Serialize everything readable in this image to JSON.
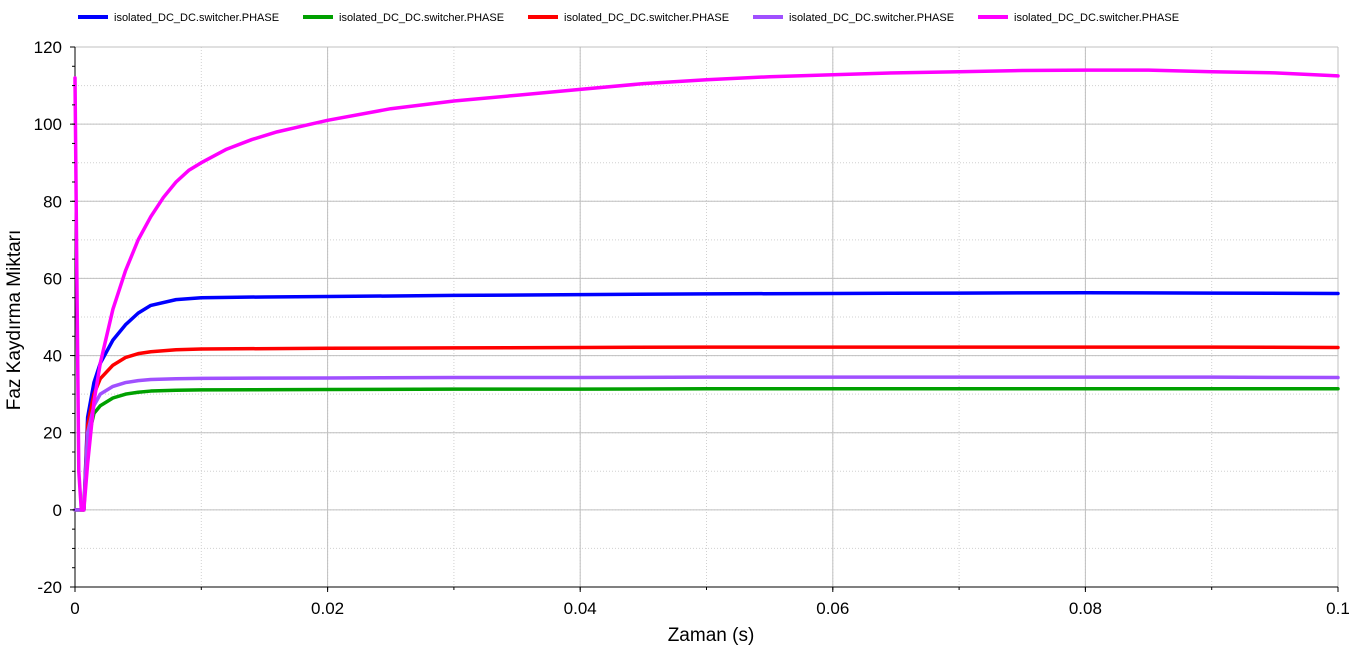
{
  "chart_data": {
    "type": "line",
    "title": "",
    "xlabel": "Zaman (s)",
    "ylabel": "Faz Kaydırma Miktarı",
    "xlim": [
      0,
      0.1
    ],
    "ylim": [
      -20,
      120
    ],
    "x_ticks": [
      0,
      0.02,
      0.04,
      0.06,
      0.08,
      0.1
    ],
    "x_tick_labels": [
      "0",
      "0.02",
      "0.04",
      "0.06",
      "0.08",
      "0.1"
    ],
    "y_ticks": [
      -20,
      0,
      20,
      40,
      60,
      80,
      100,
      120
    ],
    "y_tick_labels": [
      "-20",
      "0",
      "20",
      "40",
      "60",
      "80",
      "100",
      "120"
    ],
    "grid": true,
    "legend_position": "top",
    "series": [
      {
        "name": "isolated_DC_DC.switcher.PHASE",
        "color": "#0000ff",
        "x": [
          0,
          0.0004,
          0.0007,
          0.001,
          0.0015,
          0.002,
          0.003,
          0.004,
          0.005,
          0.006,
          0.008,
          0.01,
          0.015,
          0.02,
          0.03,
          0.04,
          0.05,
          0.06,
          0.07,
          0.08,
          0.09,
          0.1
        ],
        "y": [
          0,
          0,
          0,
          24,
          33,
          38,
          44,
          48,
          51,
          53,
          54.5,
          55,
          55.2,
          55.3,
          55.6,
          55.8,
          56.0,
          56.1,
          56.2,
          56.3,
          56.2,
          56.1
        ]
      },
      {
        "name": "isolated_DC_DC.switcher.PHASE",
        "color": "#00a000",
        "x": [
          0,
          0.0004,
          0.0007,
          0.001,
          0.0015,
          0.002,
          0.003,
          0.004,
          0.005,
          0.006,
          0.008,
          0.01,
          0.02,
          0.03,
          0.04,
          0.05,
          0.06,
          0.07,
          0.08,
          0.09,
          0.1
        ],
        "y": [
          0,
          0,
          0,
          18,
          25,
          27,
          29,
          30,
          30.5,
          30.8,
          31,
          31.1,
          31.2,
          31.3,
          31.3,
          31.4,
          31.4,
          31.4,
          31.4,
          31.4,
          31.4
        ]
      },
      {
        "name": "isolated_DC_DC.switcher.PHASE",
        "color": "#ff0000",
        "x": [
          0,
          0.0004,
          0.0007,
          0.001,
          0.0015,
          0.002,
          0.003,
          0.004,
          0.005,
          0.006,
          0.008,
          0.01,
          0.02,
          0.03,
          0.04,
          0.05,
          0.06,
          0.07,
          0.08,
          0.09,
          0.1
        ],
        "y": [
          0,
          0,
          0,
          22,
          30,
          34,
          37.5,
          39.5,
          40.5,
          41,
          41.5,
          41.7,
          41.9,
          42.0,
          42.1,
          42.2,
          42.2,
          42.2,
          42.2,
          42.2,
          42.1
        ]
      },
      {
        "name": "isolated_DC_DC.switcher.PHASE",
        "color": "#a050ff",
        "x": [
          0,
          0.0004,
          0.0007,
          0.001,
          0.0015,
          0.002,
          0.003,
          0.004,
          0.005,
          0.006,
          0.008,
          0.01,
          0.02,
          0.03,
          0.04,
          0.05,
          0.06,
          0.07,
          0.08,
          0.09,
          0.1
        ],
        "y": [
          0,
          0,
          0,
          20,
          27,
          30,
          32,
          33,
          33.5,
          33.8,
          34,
          34.1,
          34.2,
          34.3,
          34.3,
          34.4,
          34.4,
          34.4,
          34.4,
          34.4,
          34.3
        ]
      },
      {
        "name": "isolated_DC_DC.switcher.PHASE",
        "color": "#ff00ff",
        "x": [
          0,
          0.00015,
          0.0003,
          0.0005,
          0.0007,
          0.001,
          0.0015,
          0.002,
          0.003,
          0.004,
          0.005,
          0.006,
          0.007,
          0.008,
          0.009,
          0.01,
          0.012,
          0.014,
          0.016,
          0.018,
          0.02,
          0.025,
          0.03,
          0.035,
          0.04,
          0.045,
          0.05,
          0.055,
          0.06,
          0.065,
          0.07,
          0.075,
          0.08,
          0.085,
          0.09,
          0.095,
          0.1
        ],
        "y": [
          112,
          60,
          10,
          0,
          0,
          12,
          28,
          38,
          52,
          62,
          70,
          76,
          81,
          85,
          88,
          90,
          93.5,
          96,
          98,
          99.5,
          101,
          104,
          106,
          107.5,
          109,
          110.5,
          111.5,
          112.3,
          112.8,
          113.3,
          113.6,
          113.9,
          114,
          114,
          113.6,
          113.3,
          112.5
        ]
      }
    ]
  }
}
